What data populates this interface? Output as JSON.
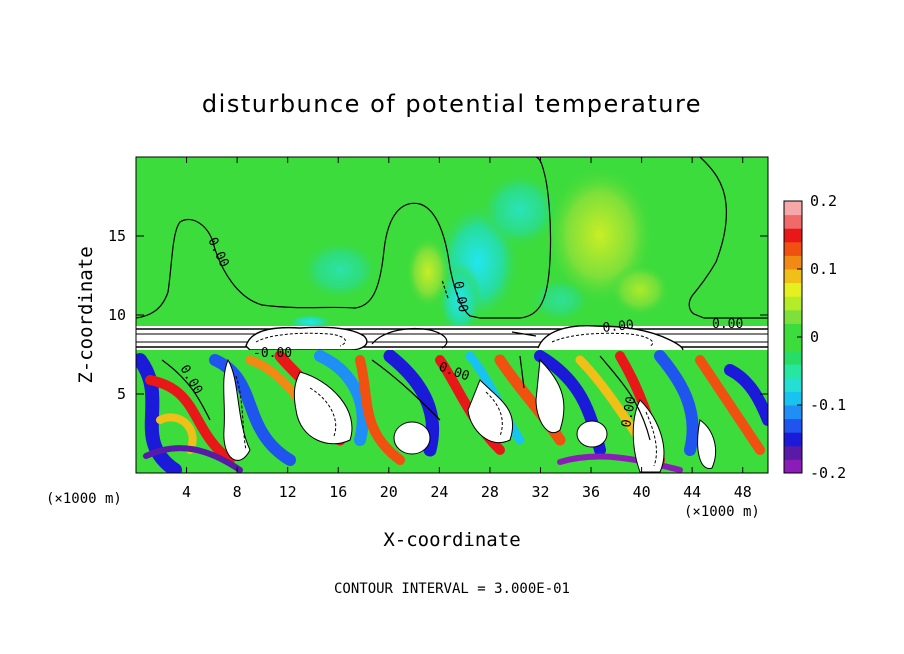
{
  "chart_data": {
    "type": "heatmap",
    "title": "disturbunce of potential temperature",
    "xlabel": "X-coordinate",
    "ylabel": "Z-coordinate",
    "x_unit": "(×1000 m)",
    "x_unit_right": "(×1000 m)",
    "xlim": [
      0,
      50
    ],
    "ylim": [
      0,
      20
    ],
    "x_ticks": [
      "4",
      "8",
      "12",
      "16",
      "20",
      "24",
      "28",
      "32",
      "36",
      "40",
      "44",
      "48"
    ],
    "y_ticks": [
      "5",
      "10",
      "15"
    ],
    "colorbar": {
      "vmin": -0.2,
      "vmax": 0.2,
      "tick_labels": [
        "0.2",
        "0.1",
        "0",
        "-0.1",
        "-0.2"
      ],
      "colors": [
        "#8b1cb8",
        "#5a1aa8",
        "#1a1ad8",
        "#1f55ee",
        "#1f8ff5",
        "#19c3f0",
        "#23e0d2",
        "#26e6a0",
        "#27dd66",
        "#3cdc3c",
        "#3cdc3c",
        "#7ee03a",
        "#b4ec28",
        "#e6f020",
        "#f0c018",
        "#f08a14",
        "#f05010",
        "#e81818",
        "#f06a6a",
        "#f4a8a8"
      ]
    },
    "contour_labels": [
      "0.00",
      "0.00",
      "0.00",
      "0.00",
      "-0.00",
      "0.00",
      "0.00",
      "0.00"
    ],
    "footer": "CONTOUR INTERVAL = 3.000E-01"
  }
}
